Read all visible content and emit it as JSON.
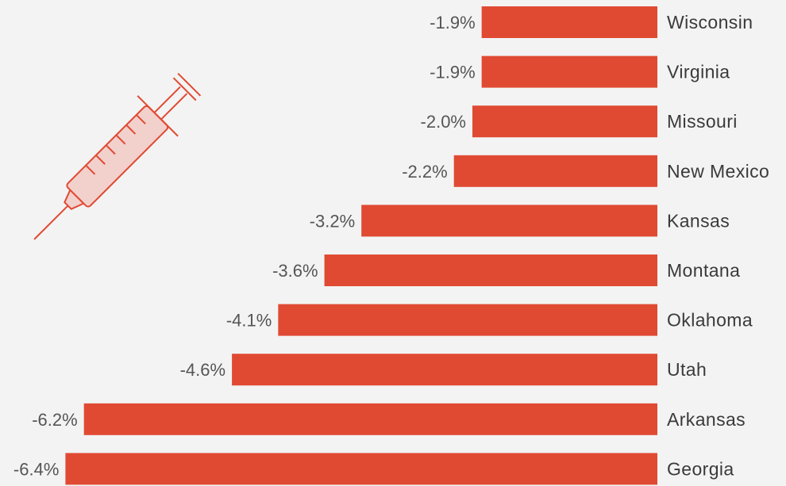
{
  "colors": {
    "bar": "#e04a33",
    "background": "#f3f3f3",
    "label_text": "#555555",
    "category_text": "#3a3a3a",
    "icon_stroke": "#e04a33",
    "icon_fill": "#f2d0cc"
  },
  "icon": "syringe-icon",
  "chart_data": {
    "type": "bar",
    "orientation": "horizontal",
    "categories": [
      "Wisconsin",
      "Virginia",
      "Missouri",
      "New Mexico",
      "Kansas",
      "Montana",
      "Oklahoma",
      "Utah",
      "Arkansas",
      "Georgia"
    ],
    "values": [
      -1.9,
      -1.9,
      -2.0,
      -2.2,
      -3.2,
      -3.6,
      -4.1,
      -4.6,
      -6.2,
      -6.4
    ],
    "value_labels": [
      "-1.9%",
      "-1.9%",
      "-2.0%",
      "-2.2%",
      "-3.2%",
      "-3.6%",
      "-4.1%",
      "-4.6%",
      "-6.2%",
      "-6.4%"
    ],
    "unit": "%",
    "grid": false,
    "legend": "none"
  }
}
